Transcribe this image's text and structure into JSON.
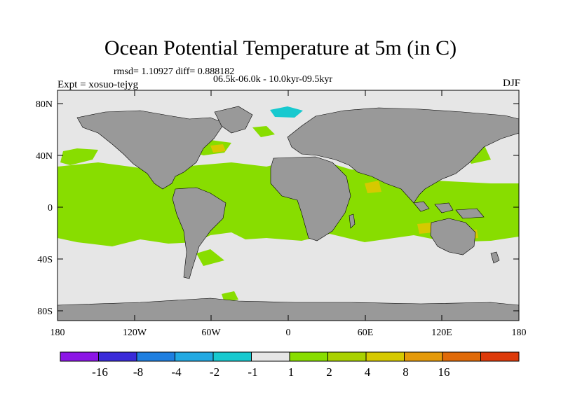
{
  "map": {
    "title": "Ocean Potential Temperature at 5m (in C)",
    "stats": "rmsd= 1.10927 diff= 0.888182",
    "period": "06.5k-06.0k - 10.0kyr-09.5kyr",
    "experiment": "Expt = xosuo-tejyg",
    "season": "DJF",
    "colors": {
      "land": "#999999",
      "no_change": "#e6e6e6",
      "warm_1_2": "#88dd00",
      "warm_2_4": "#d6c900",
      "cool_m2_m1": "#17c9cf",
      "cool_m4_m2": "#22a9e2"
    },
    "lat_ticks": [
      "80N",
      "40N",
      "0",
      "40S",
      "80S"
    ],
    "lon_ticks": [
      "180",
      "120W",
      "60W",
      "0",
      "60E",
      "120E",
      "180"
    ]
  },
  "colorbar": {
    "colors": [
      "#8c16e6",
      "#3a2bd9",
      "#1f7fe0",
      "#22a9e2",
      "#17c9cf",
      "#e6e6e6",
      "#88dd00",
      "#a9d100",
      "#d6c900",
      "#e59a0a",
      "#e06a08",
      "#dd3a0a"
    ],
    "labels": [
      "-16",
      "-8",
      "-4",
      "-2",
      "-1",
      "1",
      "2",
      "4",
      "8",
      "16"
    ]
  }
}
